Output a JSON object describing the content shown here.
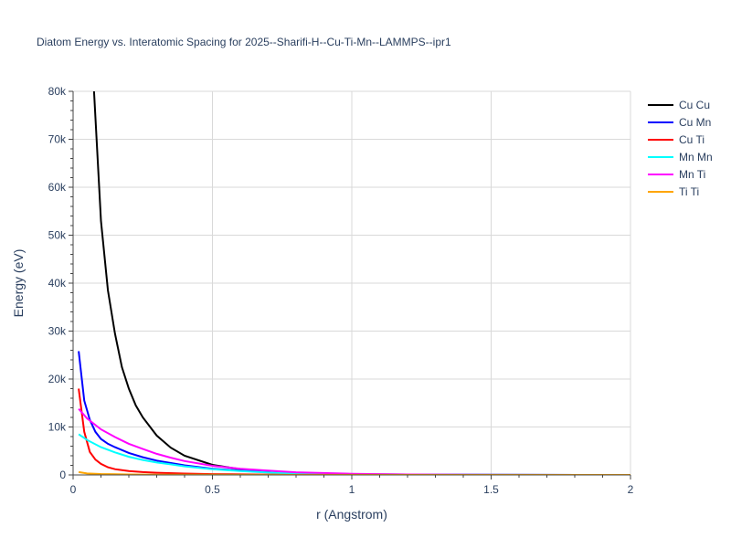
{
  "chart_data": {
    "type": "line",
    "title": "Diatom Energy vs. Interatomic Spacing for 2025--Sharifi-H--Cu-Ti-Mn--LAMMPS--ipr1",
    "xlabel": "r (Angstrom)",
    "ylabel": "Energy (eV)",
    "xlim": [
      0,
      2
    ],
    "ylim": [
      0,
      80000
    ],
    "x_ticks": [
      0,
      0.5,
      1,
      1.5,
      2
    ],
    "x_tick_labels": [
      "0",
      "0.5",
      "1",
      "1.5",
      "2"
    ],
    "y_ticks": [
      0,
      10000,
      20000,
      30000,
      40000,
      50000,
      60000,
      70000,
      80000
    ],
    "y_tick_labels": [
      "0",
      "10k",
      "20k",
      "30k",
      "40k",
      "50k",
      "60k",
      "70k",
      "80k"
    ],
    "grid": true,
    "legend_position": "top-right",
    "series": [
      {
        "name": "Cu Cu",
        "color": "#000000",
        "x": [
          0.075,
          0.1,
          0.125,
          0.15,
          0.175,
          0.2,
          0.225,
          0.25,
          0.3,
          0.35,
          0.4,
          0.5,
          0.6,
          0.7,
          0.8,
          1.0,
          1.2,
          1.5,
          2.0
        ],
        "y": [
          80000,
          53000,
          38500,
          29500,
          22500,
          18000,
          14500,
          12000,
          8200,
          5700,
          4000,
          2100,
          1200,
          700,
          400,
          150,
          60,
          20,
          0
        ]
      },
      {
        "name": "Cu Mn",
        "color": "#0000ff",
        "x": [
          0.02,
          0.04,
          0.06,
          0.08,
          0.1,
          0.125,
          0.15,
          0.2,
          0.25,
          0.3,
          0.4,
          0.5,
          0.6,
          0.8,
          1.0,
          1.5,
          2.0
        ],
        "y": [
          25800,
          15500,
          11500,
          9000,
          7500,
          6500,
          5800,
          4600,
          3700,
          3000,
          2000,
          1300,
          900,
          400,
          150,
          20,
          0
        ]
      },
      {
        "name": "Cu Ti",
        "color": "#ff0000",
        "x": [
          0.02,
          0.04,
          0.06,
          0.08,
          0.1,
          0.125,
          0.15,
          0.2,
          0.25,
          0.3,
          0.4,
          0.5,
          0.7,
          1.0,
          1.5,
          2.0
        ],
        "y": [
          18000,
          9000,
          4800,
          3200,
          2300,
          1600,
          1200,
          800,
          600,
          450,
          280,
          180,
          80,
          30,
          5,
          0
        ]
      },
      {
        "name": "Mn Mn",
        "color": "#00ffff",
        "x": [
          0.02,
          0.05,
          0.1,
          0.15,
          0.2,
          0.25,
          0.3,
          0.35,
          0.4,
          0.5,
          0.6,
          0.7,
          0.8,
          1.0,
          1.5,
          2.0
        ],
        "y": [
          8500,
          7300,
          5800,
          4700,
          3800,
          3100,
          2600,
          2200,
          1800,
          1200,
          800,
          500,
          350,
          150,
          20,
          0
        ]
      },
      {
        "name": "Mn Ti",
        "color": "#ff00ff",
        "x": [
          0.02,
          0.05,
          0.1,
          0.15,
          0.2,
          0.25,
          0.3,
          0.35,
          0.4,
          0.5,
          0.6,
          0.7,
          0.8,
          1.0,
          1.2,
          1.5,
          2.0
        ],
        "y": [
          13800,
          11800,
          9500,
          7900,
          6500,
          5400,
          4400,
          3600,
          2900,
          1900,
          1300,
          900,
          550,
          250,
          100,
          20,
          0
        ]
      },
      {
        "name": "Ti Ti",
        "color": "#ffa500",
        "x": [
          0.02,
          0.05,
          0.1,
          0.2,
          0.3,
          0.5,
          1.0,
          2.0
        ],
        "y": [
          600,
          300,
          200,
          100,
          60,
          30,
          10,
          0
        ]
      }
    ]
  }
}
